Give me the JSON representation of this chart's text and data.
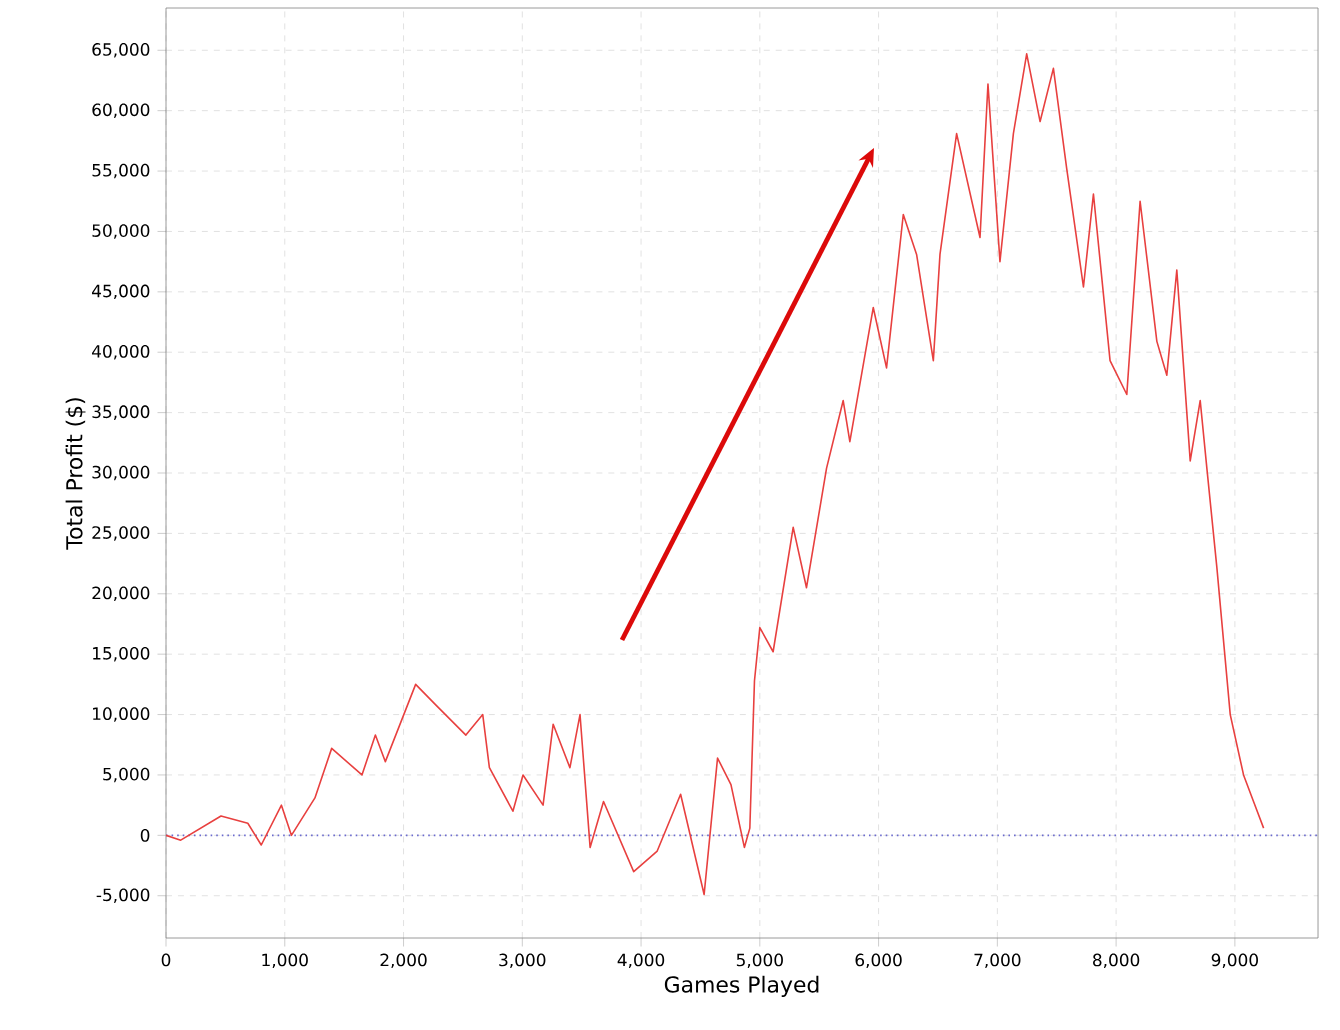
{
  "chart_data": {
    "type": "line",
    "xlabel": "Games Played",
    "ylabel": "Total Profit ($)",
    "x": [
      0,
      124,
      463,
      689,
      802,
      972,
      1056,
      1254,
      1395,
      1650,
      1763,
      1847,
      2102,
      2271,
      2525,
      2667,
      2723,
      2921,
      3006,
      3175,
      3260,
      3401,
      3486,
      3571,
      3684,
      3938,
      4136,
      4333,
      4531,
      4644,
      4757,
      4870,
      4916,
      4955,
      5000,
      5112,
      5281,
      5393,
      5562,
      5702,
      5758,
      5955,
      6067,
      6208,
      6320,
      6461,
      6517,
      6657,
      6854,
      6921,
      7022,
      7135,
      7247,
      7360,
      7472,
      7584,
      7725,
      7809,
      7949,
      8090,
      8202,
      8343,
      8427,
      8511,
      8624,
      8708,
      8764,
      8848,
      8961,
      9073,
      9157,
      9242
    ],
    "series": [
      {
        "color": "#e8403f",
        "values": [
          0,
          -400,
          1600,
          1000,
          -800,
          2500,
          0,
          3100,
          7200,
          5000,
          8300,
          6100,
          12500,
          10800,
          8300,
          10000,
          5600,
          2000,
          5000,
          2500,
          9200,
          5600,
          10000,
          -1000,
          2800,
          -3000,
          -1300,
          3400,
          -4900,
          6400,
          4200,
          -1000,
          600,
          12800,
          17200,
          15200,
          25500,
          20500,
          30400,
          36000,
          32600,
          43700,
          38700,
          51400,
          48100,
          39300,
          48100,
          58100,
          49500,
          62200,
          47500,
          58100,
          64700,
          59100,
          63500,
          55200,
          45400,
          53100,
          39300,
          36500,
          52500,
          40900,
          38100,
          46800,
          31000,
          36000,
          30400,
          22200,
          10000,
          5000,
          2800,
          600
        ]
      }
    ],
    "xlim": [
      0,
      9700
    ],
    "ylim": [
      -8500,
      68500
    ],
    "xticks": [
      0,
      {
        "value": 1000,
        "label": "1,000"
      },
      {
        "value": 2000,
        "label": "2,000"
      },
      {
        "value": 3000,
        "label": "3,000"
      },
      {
        "value": 4000,
        "label": "4,000"
      },
      {
        "value": 5000,
        "label": "5,000"
      },
      {
        "value": 6000,
        "label": "6,000"
      },
      {
        "value": 7000,
        "label": "7,000"
      },
      {
        "value": 8000,
        "label": "8,000"
      },
      {
        "value": 9000,
        "label": "9,000"
      }
    ],
    "yticks": [
      {
        "value": -5000,
        "label": "-5,000"
      },
      0,
      {
        "value": 5000,
        "label": "5,000"
      },
      {
        "value": 10000,
        "label": "10,000"
      },
      {
        "value": 15000,
        "label": "15,000"
      },
      {
        "value": 20000,
        "label": "20,000"
      },
      {
        "value": 25000,
        "label": "25,000"
      },
      {
        "value": 30000,
        "label": "30,000"
      },
      {
        "value": 35000,
        "label": "35,000"
      },
      {
        "value": 40000,
        "label": "40,000"
      },
      {
        "value": 45000,
        "label": "45,000"
      },
      {
        "value": 50000,
        "label": "50,000"
      },
      {
        "value": 55000,
        "label": "55,000"
      },
      {
        "value": 60000,
        "label": "60,000"
      },
      {
        "value": 65000,
        "label": "65,000"
      }
    ],
    "ref_lines": [
      {
        "axis": "y",
        "value": 0,
        "color": "#6a6acd",
        "line_style": "dotted"
      }
    ],
    "grid": true,
    "marker": "none",
    "line_style": "solid"
  }
}
